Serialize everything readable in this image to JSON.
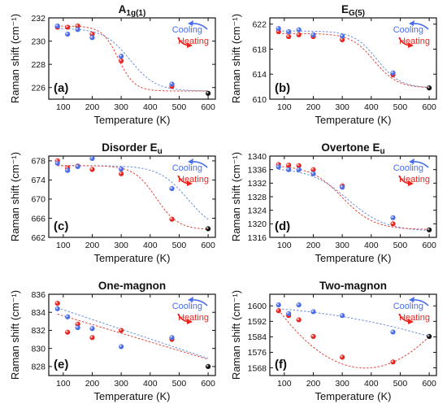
{
  "colors": {
    "cooling": "#4a6ee8",
    "heating": "#e8251f",
    "endpoint": "#111111",
    "cooling_fit": "#6b8fe0",
    "heating_fit": "#e0453a"
  },
  "shared": {
    "xlabel": "Temperature (K)",
    "legend_cooling": "Cooling",
    "legend_heating": "Heating"
  },
  "chart_data": [
    {
      "type": "scatter",
      "title": "A",
      "title_sub": "1g(1)",
      "letter": "(a)",
      "ylabel": "Raman shift (cm⁻¹)",
      "xlabel": "Temperature (K)",
      "xlim": [
        50,
        625
      ],
      "xticks": [
        100,
        200,
        300,
        400,
        500,
        600
      ],
      "ylim": [
        225,
        232
      ],
      "yticks": [
        226,
        228,
        230,
        232
      ],
      "series": [
        {
          "name": "Cooling",
          "x": [
            80,
            115,
            150,
            200,
            300,
            475
          ],
          "y": [
            231.3,
            230.6,
            231.0,
            230.3,
            228.7,
            226.3
          ]
        },
        {
          "name": "Heating",
          "x": [
            80,
            115,
            150,
            200,
            300,
            475
          ],
          "y": [
            231.2,
            231.2,
            231.3,
            230.6,
            228.3,
            226.1
          ]
        }
      ],
      "endpoint": {
        "x": 600,
        "y": 225.5
      },
      "fits": {
        "cooling": {
          "top": 231.1,
          "bottom": 225.7,
          "mid": 330,
          "width": 45
        },
        "heating": {
          "top": 231.3,
          "bottom": 225.7,
          "mid": 290,
          "width": 28
        }
      }
    },
    {
      "type": "scatter",
      "title": "E",
      "title_sub": "G(5)",
      "letter": "(b)",
      "ylabel": "Raman shift (cm⁻¹)",
      "xlabel": "Temperature (K)",
      "xlim": [
        50,
        625
      ],
      "xticks": [
        100,
        200,
        300,
        400,
        500,
        600
      ],
      "ylim": [
        610,
        623
      ],
      "yticks": [
        610,
        614,
        618,
        622
      ],
      "series": [
        {
          "name": "Cooling",
          "x": [
            80,
            115,
            150,
            200,
            300,
            475
          ],
          "y": [
            621.3,
            620.8,
            621.1,
            620.3,
            620.1,
            614.2
          ]
        },
        {
          "name": "Heating",
          "x": [
            80,
            115,
            150,
            200,
            300,
            475
          ],
          "y": [
            620.8,
            620.0,
            620.3,
            620.0,
            619.5,
            613.9
          ]
        }
      ],
      "endpoint": {
        "x": 600,
        "y": 611.8
      },
      "fits": {
        "cooling": {
          "top": 620.9,
          "bottom": 611.8,
          "mid": 420,
          "width": 40
        },
        "heating": {
          "top": 620.5,
          "bottom": 611.8,
          "mid": 410,
          "width": 40
        }
      }
    },
    {
      "type": "scatter",
      "title": "Disorder E",
      "title_sub": "u",
      "letter": "(c)",
      "ylabel": "Raman shift (cm⁻¹)",
      "xlabel": "Temperature (K)",
      "xlim": [
        50,
        625
      ],
      "xticks": [
        100,
        200,
        300,
        400,
        500,
        600
      ],
      "ylim": [
        662,
        679
      ],
      "yticks": [
        662,
        666,
        670,
        674,
        678
      ],
      "series": [
        {
          "name": "Cooling",
          "x": [
            80,
            115,
            150,
            200,
            300,
            475
          ],
          "y": [
            677.5,
            676.0,
            676.8,
            678.5,
            676.3,
            672.2
          ]
        },
        {
          "name": "Heating",
          "x": [
            80,
            115,
            150,
            200,
            300,
            475
          ],
          "y": [
            678.0,
            676.5,
            676.9,
            676.2,
            675.3,
            665.8
          ]
        }
      ],
      "endpoint": {
        "x": 600,
        "y": 663.8
      },
      "fits": {
        "cooling": {
          "top": 677.0,
          "bottom": 663.0,
          "mid": 530,
          "width": 50
        },
        "heating": {
          "top": 677.0,
          "bottom": 663.6,
          "mid": 420,
          "width": 38
        }
      }
    },
    {
      "type": "scatter",
      "title": "Overtone E",
      "title_sub": "u",
      "letter": "(d)",
      "ylabel": "Raman shift (cm⁻¹)",
      "xlabel": "Temperature (K)",
      "xlim": [
        50,
        625
      ],
      "xticks": [
        100,
        200,
        300,
        400,
        500,
        600
      ],
      "ylim": [
        1316,
        1340
      ],
      "yticks": [
        1316,
        1320,
        1324,
        1328,
        1332,
        1336,
        1340
      ],
      "series": [
        {
          "name": "Cooling",
          "x": [
            80,
            115,
            150,
            200,
            300,
            475
          ],
          "y": [
            1336.8,
            1336.0,
            1336.0,
            1334.8,
            1330.8,
            1321.8
          ]
        },
        {
          "name": "Heating",
          "x": [
            80,
            115,
            150,
            200,
            300,
            475
          ],
          "y": [
            1337.5,
            1337.3,
            1337.2,
            1336.0,
            1331.2,
            1320.0
          ]
        }
      ],
      "endpoint": {
        "x": 600,
        "y": 1318.2
      },
      "fits": {
        "cooling": {
          "top": 1336.5,
          "bottom": 1317.8,
          "mid": 320,
          "width": 65
        },
        "heating": {
          "top": 1337.3,
          "bottom": 1318.3,
          "mid": 300,
          "width": 55
        }
      }
    },
    {
      "type": "scatter",
      "title": "One-magnon",
      "title_sub": "",
      "letter": "(e)",
      "ylabel": "Raman shift (cm⁻¹)",
      "xlabel": "Temperature (K)",
      "xlim": [
        50,
        625
      ],
      "xticks": [
        100,
        200,
        300,
        400,
        500,
        600
      ],
      "ylim": [
        827,
        836
      ],
      "yticks": [
        828,
        830,
        832,
        834,
        836
      ],
      "series": [
        {
          "name": "Cooling",
          "x": [
            80,
            115,
            150,
            200,
            300,
            475
          ],
          "y": [
            834.4,
            833.5,
            832.3,
            832.2,
            830.2,
            831.2
          ]
        },
        {
          "name": "Heating",
          "x": [
            80,
            115,
            150,
            200,
            300,
            475
          ],
          "y": [
            835.0,
            831.8,
            832.7,
            831.2,
            832.0,
            831.0
          ]
        }
      ],
      "endpoint": {
        "x": 600,
        "y": 828.0
      },
      "fits": {
        "cooling_line": {
          "x": [
            80,
            600
          ],
          "y": [
            834.5,
            828.9
          ]
        },
        "heating_line": {
          "x": [
            80,
            600
          ],
          "y": [
            833.8,
            828.8
          ]
        }
      }
    },
    {
      "type": "scatter",
      "title": "Two-magnon",
      "title_sub": "",
      "letter": "(f)",
      "ylabel": "Raman shift (cm⁻¹)",
      "xlabel": "Temperature (K)",
      "xlim": [
        50,
        625
      ],
      "xticks": [
        100,
        200,
        300,
        400,
        500,
        600
      ],
      "ylim": [
        1564,
        1606
      ],
      "yticks": [
        1568,
        1576,
        1584,
        1592,
        1600
      ],
      "series": [
        {
          "name": "Cooling",
          "x": [
            80,
            115,
            150,
            200,
            300,
            475
          ],
          "y": [
            1600.5,
            1596.0,
            1600.5,
            1597.0,
            1595.0,
            1586.5
          ]
        },
        {
          "name": "Heating",
          "x": [
            80,
            115,
            150,
            200,
            300,
            475
          ],
          "y": [
            1597.5,
            1595.0,
            1592.8,
            1584.2,
            1573.5,
            1571.0
          ]
        }
      ],
      "endpoint": {
        "x": 600,
        "y": 1584.2
      },
      "fits": {
        "cooling_quad": {
          "x": [
            80,
            300,
            600
          ],
          "y": [
            1598.5,
            1594.5,
            1584.2
          ]
        },
        "heating_quad": {
          "x": [
            80,
            400,
            600
          ],
          "y": [
            1598.0,
            1568.0,
            1584.2
          ]
        }
      }
    }
  ]
}
